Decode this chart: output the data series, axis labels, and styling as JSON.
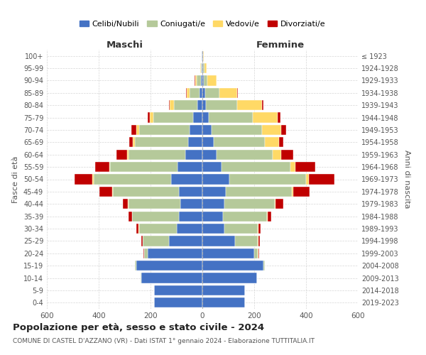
{
  "age_groups": [
    "0-4",
    "5-9",
    "10-14",
    "15-19",
    "20-24",
    "25-29",
    "30-34",
    "35-39",
    "40-44",
    "45-49",
    "50-54",
    "55-59",
    "60-64",
    "65-69",
    "70-74",
    "75-79",
    "80-84",
    "85-89",
    "90-94",
    "95-99",
    "100+"
  ],
  "birth_years": [
    "2019-2023",
    "2014-2018",
    "2009-2013",
    "2004-2008",
    "1999-2003",
    "1994-1998",
    "1989-1993",
    "1984-1988",
    "1979-1983",
    "1974-1978",
    "1969-1973",
    "1964-1968",
    "1959-1963",
    "1954-1958",
    "1949-1953",
    "1944-1948",
    "1939-1943",
    "1934-1938",
    "1929-1933",
    "1924-1928",
    "≤ 1923"
  ],
  "maschi": {
    "celibi": [
      185,
      185,
      235,
      255,
      210,
      130,
      100,
      90,
      85,
      90,
      120,
      95,
      65,
      55,
      50,
      35,
      20,
      10,
      5,
      2,
      2
    ],
    "coniugati": [
      0,
      0,
      2,
      5,
      15,
      100,
      145,
      180,
      200,
      255,
      300,
      260,
      220,
      205,
      195,
      155,
      90,
      40,
      18,
      4,
      2
    ],
    "vedovi": [
      0,
      0,
      0,
      0,
      1,
      1,
      1,
      1,
      2,
      3,
      4,
      5,
      6,
      8,
      10,
      12,
      15,
      10,
      5,
      1,
      0
    ],
    "divorziati": [
      0,
      0,
      0,
      0,
      2,
      5,
      10,
      15,
      20,
      50,
      70,
      55,
      40,
      15,
      18,
      10,
      5,
      2,
      1,
      0,
      0
    ]
  },
  "femmine": {
    "nubili": [
      165,
      165,
      210,
      235,
      200,
      125,
      85,
      80,
      85,
      90,
      105,
      75,
      55,
      45,
      35,
      25,
      15,
      10,
      5,
      3,
      2
    ],
    "coniugate": [
      0,
      0,
      2,
      5,
      15,
      90,
      130,
      170,
      195,
      255,
      295,
      265,
      215,
      195,
      195,
      170,
      120,
      55,
      15,
      5,
      2
    ],
    "vedove": [
      0,
      0,
      0,
      0,
      1,
      1,
      1,
      2,
      3,
      5,
      10,
      20,
      35,
      55,
      75,
      95,
      95,
      70,
      35,
      8,
      2
    ],
    "divorziate": [
      0,
      0,
      0,
      0,
      2,
      5,
      10,
      15,
      30,
      65,
      100,
      75,
      45,
      18,
      18,
      10,
      5,
      2,
      1,
      0,
      0
    ]
  },
  "colors": {
    "celibi_nubili": "#4472c4",
    "coniugati": "#b5c99a",
    "vedovi": "#ffd966",
    "divorziati": "#c00000"
  },
  "title": "Popolazione per età, sesso e stato civile - 2024",
  "subtitle": "COMUNE DI CASTEL D'AZZANO (VR) - Dati ISTAT 1° gennaio 2024 - Elaborazione TUTTITALIA.IT",
  "xlabel_left": "Maschi",
  "xlabel_right": "Femmine",
  "ylabel_left": "Fasce di età",
  "ylabel_right": "Anni di nascita",
  "xlim": 600,
  "legend_labels": [
    "Celibi/Nubili",
    "Coniugati/e",
    "Vedovi/e",
    "Divorziati/e"
  ],
  "background_color": "#ffffff",
  "grid_color": "#cccccc"
}
